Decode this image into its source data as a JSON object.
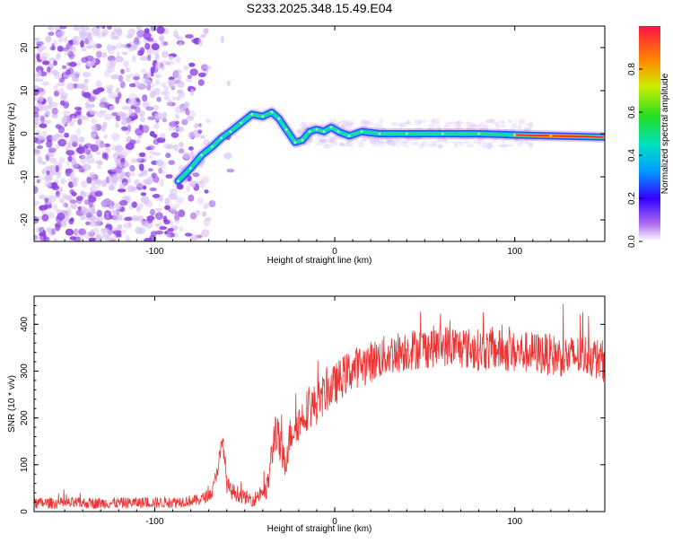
{
  "title": "S233.2025.348.15.49.E04",
  "colors": {
    "frame": "#000000",
    "snr_line": "#ee3333",
    "ridge_core": "#ff2a2a",
    "ridge_mid": "#22dd88",
    "ridge_outer": "#2a4bff",
    "noise": "#8c3fe0",
    "noise_light": "#d9c2f5"
  },
  "colorbar": {
    "label": "Normalized spectral amplitude",
    "ticks": [
      "0.0",
      "0.2",
      "0.4",
      "0.6",
      "0.8"
    ],
    "tick_values": [
      0.0,
      0.2,
      0.4,
      0.6,
      0.8
    ],
    "range": [
      0,
      1
    ]
  },
  "chart_data": [
    {
      "type": "heatmap",
      "name": "spectrogram",
      "title": "S233.2025.348.15.49.E04",
      "xlabel": "Height of straight line (km)",
      "ylabel": "Frequency (Hz)",
      "xlim": [
        -167,
        150
      ],
      "ylim": [
        -25,
        25
      ],
      "xticks": [
        -100,
        0,
        100
      ],
      "xtick_labels": [
        "-100",
        "0",
        "100"
      ],
      "yticks": [
        -20,
        -10,
        0,
        10,
        20
      ],
      "ytick_labels": [
        "-20",
        "-10",
        "0",
        "10",
        "20"
      ],
      "noise_region_x": [
        -167,
        -70
      ],
      "ridge": {
        "x": [
          -87,
          -80,
          -74,
          -68,
          -63,
          -58,
          -52,
          -46,
          -40,
          -35,
          -31,
          -27,
          -22,
          -18,
          -14,
          -10,
          -6,
          -2,
          2,
          8,
          15,
          25,
          40,
          60,
          80,
          100,
          120,
          150
        ],
        "y": [
          -11,
          -8,
          -5,
          -3,
          -1,
          0.5,
          2.5,
          4.5,
          4,
          5,
          3.5,
          1,
          -2,
          -1.5,
          0.5,
          1,
          0.5,
          1.5,
          0.5,
          -0.5,
          0.5,
          0,
          0,
          0,
          0,
          -0.3,
          -0.5,
          -0.8
        ],
        "amplitude": [
          0.3,
          0.3,
          0.35,
          0.35,
          0.4,
          0.4,
          0.5,
          0.5,
          0.5,
          0.55,
          0.55,
          0.5,
          0.5,
          0.5,
          0.55,
          0.55,
          0.6,
          0.6,
          0.6,
          0.6,
          0.6,
          0.65,
          0.65,
          0.7,
          0.7,
          0.8,
          0.9,
          0.95
        ]
      }
    },
    {
      "type": "line",
      "name": "snr",
      "title": "",
      "xlabel": "Height of straight line (km)",
      "ylabel": "SNR (10 * v/v)",
      "xlim": [
        -167,
        150
      ],
      "ylim": [
        0,
        460
      ],
      "xticks": [
        -100,
        0,
        100
      ],
      "xtick_labels": [
        "-100",
        "0",
        "100"
      ],
      "yticks": [
        0,
        100,
        200,
        300,
        400
      ],
      "ytick_labels": [
        "0",
        "100",
        "200",
        "300",
        "400"
      ],
      "series": [
        {
          "name": "SNR",
          "x": [
            -167,
            -150,
            -130,
            -110,
            -90,
            -75,
            -68,
            -62,
            -60,
            -58,
            -55,
            -50,
            -45,
            -40,
            -38,
            -36,
            -33,
            -30,
            -28,
            -25,
            -22,
            -20,
            -15,
            -10,
            -5,
            0,
            5,
            10,
            20,
            30,
            40,
            50,
            60,
            70,
            80,
            90,
            100,
            110,
            120,
            130,
            140,
            150
          ],
          "y": [
            18,
            18,
            18,
            19,
            20,
            25,
            40,
            150,
            60,
            45,
            40,
            30,
            25,
            45,
            40,
            90,
            180,
            130,
            100,
            160,
            185,
            190,
            220,
            230,
            255,
            270,
            290,
            305,
            320,
            335,
            345,
            350,
            355,
            350,
            345,
            345,
            340,
            340,
            335,
            330,
            335,
            320
          ],
          "noise_amplitude": [
            12,
            12,
            12,
            12,
            12,
            12,
            14,
            25,
            20,
            18,
            18,
            15,
            15,
            20,
            25,
            35,
            45,
            45,
            40,
            40,
            40,
            40,
            45,
            45,
            45,
            45,
            45,
            45,
            45,
            45,
            45,
            45,
            45,
            45,
            45,
            45,
            45,
            45,
            45,
            45,
            45,
            45
          ]
        }
      ]
    }
  ]
}
